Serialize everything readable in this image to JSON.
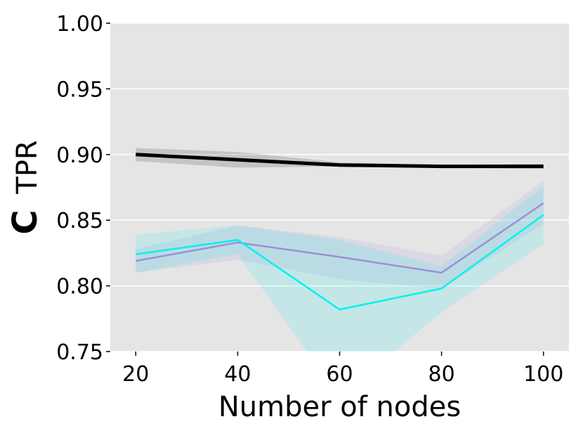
{
  "chart_data": {
    "type": "line",
    "panel_letter": "C",
    "xlabel": "Number of nodes",
    "ylabel": "TPR",
    "x": [
      20,
      40,
      60,
      80,
      100
    ],
    "xlim": [
      15,
      105
    ],
    "ylim": [
      0.75,
      1.0
    ],
    "x_ticks": [
      "20",
      "40",
      "60",
      "80",
      "100"
    ],
    "x_tick_values": [
      20,
      40,
      60,
      80,
      100
    ],
    "y_ticks": [
      "0.75",
      "0.80",
      "0.85",
      "0.90",
      "0.95",
      "1.00"
    ],
    "y_tick_values": [
      0.75,
      0.8,
      0.85,
      0.9,
      0.95,
      1.0
    ],
    "grid": "horizontal",
    "background": "#e5e5e5",
    "series": [
      {
        "color": "#000000",
        "values": [
          0.9,
          0.896,
          0.892,
          0.891,
          0.891
        ],
        "lower": [
          0.895,
          0.89,
          0.891,
          0.89,
          0.889
        ],
        "upper": [
          0.905,
          0.902,
          0.894,
          0.892,
          0.893
        ]
      },
      {
        "color": "#9b8fd6",
        "values": [
          0.819,
          0.833,
          0.822,
          0.81,
          0.863
        ],
        "lower": [
          0.81,
          0.82,
          0.805,
          0.798,
          0.847
        ],
        "upper": [
          0.828,
          0.846,
          0.837,
          0.823,
          0.88
        ]
      },
      {
        "color": "#00f0f0",
        "values": [
          0.824,
          0.835,
          0.782,
          0.798,
          0.854
        ],
        "lower": [
          0.81,
          0.824,
          0.715,
          0.78,
          0.832
        ],
        "upper": [
          0.839,
          0.846,
          0.835,
          0.815,
          0.876
        ]
      }
    ]
  }
}
